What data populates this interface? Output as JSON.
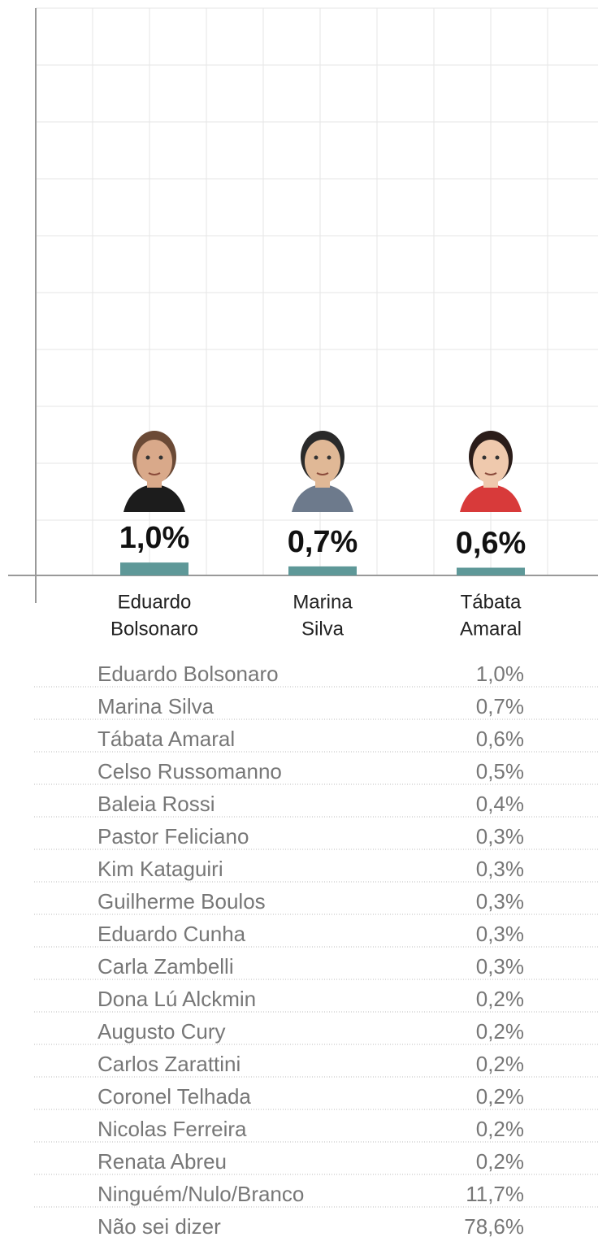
{
  "chart_data": {
    "type": "bar",
    "categories": [
      [
        "Eduardo",
        "Bolsonaro"
      ],
      [
        "Marina",
        "Silva"
      ],
      [
        "Tábata",
        "Amaral"
      ]
    ],
    "values": [
      1.0,
      0.7,
      0.6
    ],
    "value_labels": [
      "1,0%",
      "0,7%",
      "0,6%"
    ],
    "color": "#5e9898",
    "ylim": [
      0,
      44
    ],
    "grid": true
  },
  "table": {
    "rows": [
      [
        "Eduardo Bolsonaro",
        "1,0%"
      ],
      [
        "Marina Silva",
        "0,7%"
      ],
      [
        "Tábata Amaral",
        "0,6%"
      ],
      [
        "Celso Russomanno",
        "0,5%"
      ],
      [
        "Baleia Rossi",
        "0,4%"
      ],
      [
        "Pastor Feliciano",
        "0,3%"
      ],
      [
        "Kim Kataguiri",
        "0,3%"
      ],
      [
        "Guilherme Boulos",
        "0,3%"
      ],
      [
        "Eduardo Cunha",
        "0,3%"
      ],
      [
        "Carla Zambelli",
        "0,3%"
      ],
      [
        "Dona Lú Alckmin",
        "0,2%"
      ],
      [
        "Augusto Cury",
        "0,2%"
      ],
      [
        "Carlos Zarattini",
        "0,2%"
      ],
      [
        "Coronel Telhada",
        "0,2%"
      ],
      [
        "Nicolas Ferreira",
        "0,2%"
      ],
      [
        "Renata Abreu",
        "0,2%"
      ],
      [
        "Ninguém/Nulo/Branco",
        "11,7%"
      ],
      [
        "Não sei dizer",
        "78,6%"
      ]
    ]
  }
}
